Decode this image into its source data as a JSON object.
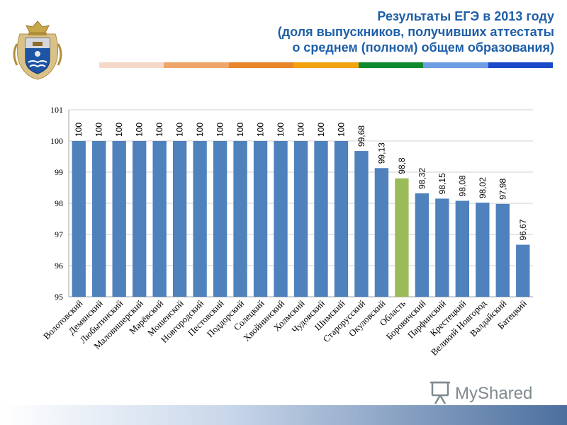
{
  "header": {
    "title_lines": [
      "Результаты ЕГЭ в 2013 году",
      "(доля выпускников, получивших аттестаты",
      "о среднем (полном) общем образования)"
    ]
  },
  "watermark": {
    "text": "MyShared"
  },
  "colors": {
    "bar": "#4f81bd",
    "highlight": "#9bbb59",
    "title": "#1f5fa8",
    "stripe": [
      "#f4d9c8",
      "#eea56a",
      "#e8862a",
      "#f2a20f",
      "#0f8a2e",
      "#6f9de4",
      "#1a49c9"
    ]
  },
  "chart_data": {
    "type": "bar",
    "categories": [
      "Волотовский",
      "Демянский",
      "Любытинский",
      "Маловишерский",
      "Марёвский",
      "Мошенской",
      "Новгородский",
      "Пестовский",
      "Поддорский",
      "Солецкий",
      "Хвойнинский",
      "Холмский",
      "Чудовский",
      "Шимский",
      "Старорусский",
      "Окуловский",
      "Область",
      "Боровичский",
      "Парфинский",
      "Крестецкий",
      "Великий Новгород",
      "Валдайский",
      "Батецкий"
    ],
    "values": [
      100,
      100,
      100,
      100,
      100,
      100,
      100,
      100,
      100,
      100,
      100,
      100,
      100,
      100,
      99.68,
      99.13,
      98.8,
      98.32,
      98.15,
      98.08,
      98.02,
      97.98,
      96.67
    ],
    "value_labels": [
      "100",
      "100",
      "100",
      "100",
      "100",
      "100",
      "100",
      "100",
      "100",
      "100",
      "100",
      "100",
      "100",
      "100",
      "99,68",
      "99,13",
      "98,8",
      "98,32",
      "98,15",
      "98,08",
      "98,02",
      "97,98",
      "96,67"
    ],
    "highlight_index": 16,
    "ylim": [
      95,
      101
    ],
    "yticks": [
      "95",
      "96",
      "97",
      "98",
      "99",
      "100",
      "101"
    ],
    "grid": true,
    "title": "",
    "xlabel": "",
    "ylabel": ""
  }
}
